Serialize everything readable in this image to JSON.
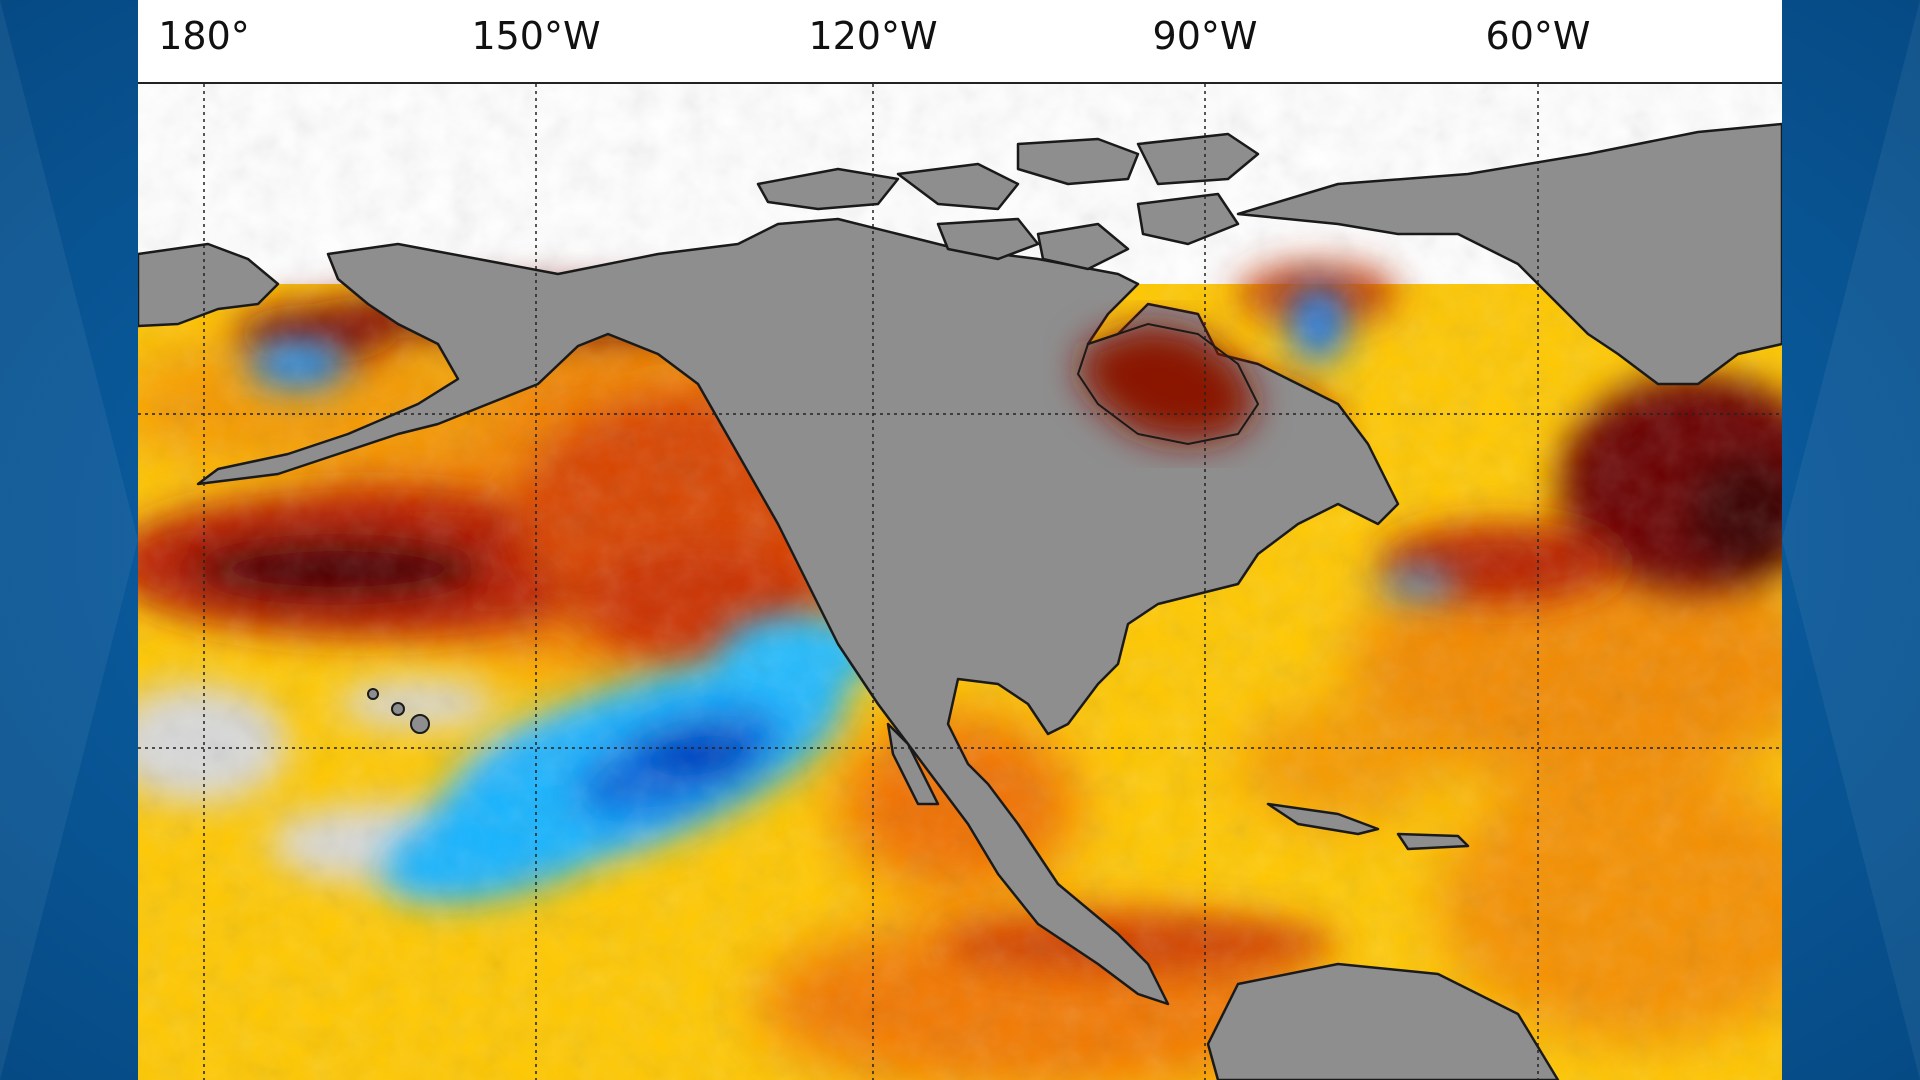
{
  "map": {
    "longitude_labels": [
      {
        "text": "180°"
      },
      {
        "text": "150°W"
      },
      {
        "text": "120°W"
      },
      {
        "text": "90°W"
      },
      {
        "text": "60°W"
      }
    ],
    "colors": {
      "land": "#8e8e8e",
      "coast": "#1a1a1a",
      "ocean_warm_dark": "#4a0000",
      "ocean_warm": "#d43a00",
      "ocean_orange": "#f07a00",
      "ocean_yellow": "#ffc400",
      "ocean_neutral": "#d6d6d6",
      "ocean_cool": "#19b4ff",
      "ocean_cold": "#0055d4",
      "ice": "#ffffff",
      "background": "#0a5a9c"
    }
  }
}
